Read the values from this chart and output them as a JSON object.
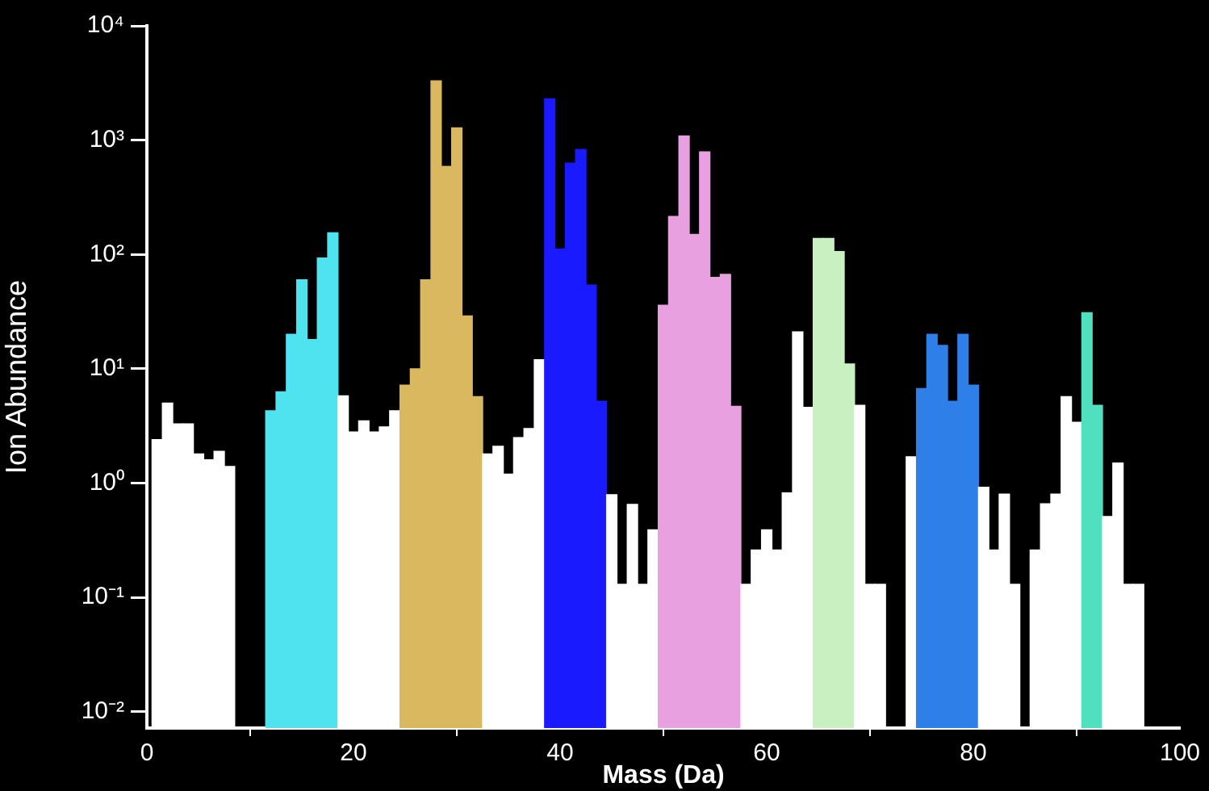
{
  "chart_data": {
    "type": "histogram",
    "xlabel": "Mass (Da)",
    "ylabel": "Ion Abundance",
    "log": "y",
    "grid": false,
    "bins": [
      0.5,
      1.5,
      2.5,
      3.5,
      4.5,
      5.5,
      6.5,
      7.5,
      8.5,
      9.5,
      10.5,
      11.5,
      12.5,
      13.5,
      14.5,
      15.5,
      16.5,
      17.5,
      18.5,
      19.5,
      20.5,
      21.5,
      22.5,
      23.5,
      24.5,
      25.5,
      26.5,
      27.5,
      28.5,
      29.5,
      30.5,
      31.5,
      32.5,
      33.5,
      34.5,
      35.5,
      36.5,
      37.5,
      38.5,
      39.5,
      40.5,
      41.5,
      42.5,
      43.5,
      44.5,
      45.5,
      46.5,
      47.5,
      48.5,
      49.5,
      50.5,
      51.5,
      52.5,
      53.5,
      54.5,
      55.5,
      56.5,
      57.5,
      58.5,
      59.5,
      60.5,
      61.5,
      62.5,
      63.5,
      64.5,
      65.5,
      66.5,
      67.5,
      68.5,
      69.5,
      70.5,
      71.5,
      72.5,
      73.5,
      74.5,
      75.5,
      76.5,
      77.5,
      78.5,
      79.5,
      80.5,
      81.5,
      82.5,
      83.5,
      84.5,
      85.5,
      86.5,
      87.5,
      88.5,
      89.5,
      90.5,
      91.5,
      92.5,
      93.5,
      94.5,
      95.5,
      96.5
    ],
    "values": [
      2.4,
      5.0,
      3.3,
      3.3,
      1.8,
      1.6,
      1.9,
      1.4,
      null,
      null,
      null,
      4.3,
      6.3,
      20,
      60,
      18,
      93,
      155,
      5.8,
      2.8,
      3.5,
      2.8,
      3.1,
      4.3,
      7.2,
      10,
      60,
      3300,
      590,
      1280,
      29,
      5.7,
      1.8,
      2.1,
      1.2,
      2.5,
      3.0,
      12,
      2300,
      112,
      630,
      830,
      54,
      5.2,
      0.79,
      0.13,
      0.65,
      0.13,
      0.39,
      36,
      215,
      1090,
      150,
      790,
      63,
      67,
      4.7,
      0.13,
      0.26,
      0.39,
      0.26,
      0.82,
      21,
      4.6,
      138,
      138,
      106,
      11,
      4.8,
      0.13,
      0.13,
      null,
      null,
      1.7,
      6.7,
      20,
      16,
      5.2,
      20,
      7.2,
      0.92,
      0.26,
      0.8,
      0.13,
      null,
      0.26,
      0.66,
      0.8,
      5.7,
      3.4,
      31,
      4.8,
      0.51,
      1.5,
      0.13,
      0.13
    ],
    "colors": [
      "#ffffff",
      "#ffffff",
      "#ffffff",
      "#ffffff",
      "#ffffff",
      "#ffffff",
      "#ffffff",
      "#ffffff",
      "#ffffff",
      "#ffffff",
      "#ffffff",
      "#4fe3f0",
      "#4fe3f0",
      "#4fe3f0",
      "#4fe3f0",
      "#4fe3f0",
      "#4fe3f0",
      "#4fe3f0",
      "#ffffff",
      "#ffffff",
      "#ffffff",
      "#ffffff",
      "#ffffff",
      "#ffffff",
      "#d9b860",
      "#d9b860",
      "#d9b860",
      "#d9b860",
      "#d9b860",
      "#d9b860",
      "#d9b860",
      "#d9b860",
      "#ffffff",
      "#ffffff",
      "#ffffff",
      "#ffffff",
      "#ffffff",
      "#ffffff",
      "#1a1aff",
      "#1a1aff",
      "#1a1aff",
      "#1a1aff",
      "#1a1aff",
      "#1a1aff",
      "#ffffff",
      "#ffffff",
      "#ffffff",
      "#ffffff",
      "#ffffff",
      "#e8a0e0",
      "#e8a0e0",
      "#e8a0e0",
      "#e8a0e0",
      "#e8a0e0",
      "#e8a0e0",
      "#e8a0e0",
      "#e8a0e0",
      "#ffffff",
      "#ffffff",
      "#ffffff",
      "#ffffff",
      "#ffffff",
      "#ffffff",
      "#ffffff",
      "#c8f0c0",
      "#c8f0c0",
      "#c8f0c0",
      "#c8f0c0",
      "#ffffff",
      "#ffffff",
      "#ffffff",
      "#ffffff",
      "#ffffff",
      "#ffffff",
      "#2f7fe8",
      "#2f7fe8",
      "#2f7fe8",
      "#2f7fe8",
      "#2f7fe8",
      "#2f7fe8",
      "#ffffff",
      "#ffffff",
      "#ffffff",
      "#ffffff",
      "#ffffff",
      "#ffffff",
      "#ffffff",
      "#ffffff",
      "#ffffff",
      "#ffffff",
      "#50e0c0",
      "#50e0c0",
      "#ffffff",
      "#ffffff",
      "#ffffff",
      "#ffffff"
    ],
    "xlim": [
      0,
      100
    ],
    "xticks": [
      0,
      20,
      40,
      60,
      80,
      100
    ],
    "ylim": [
      0.0072,
      10000
    ],
    "yticks": [
      {
        "value": 10000,
        "label": "10⁴"
      },
      {
        "value": 1000,
        "label": "10³"
      },
      {
        "value": 100,
        "label": "10²"
      },
      {
        "value": 10,
        "label": "10¹"
      },
      {
        "value": 1,
        "label": "10⁰"
      },
      {
        "value": 0.1,
        "label": "10⁻¹"
      },
      {
        "value": 0.01,
        "label": "10⁻²"
      }
    ]
  }
}
